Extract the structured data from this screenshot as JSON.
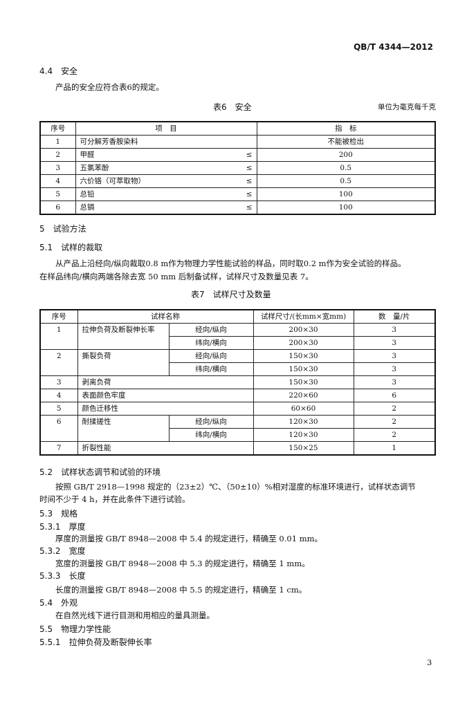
{
  "header": {
    "standard_no": "QB/T 4344—2012"
  },
  "s44": {
    "heading_no": "4.4",
    "heading": "安全",
    "para": "产品的安全应符合表6的规定。"
  },
  "table6": {
    "title": "表6　安全",
    "unit": "单位为毫克每千克",
    "headers": [
      "序号",
      "项　目",
      "指　标"
    ],
    "rows": [
      {
        "no": "1",
        "item": "可分解芳香胺染料",
        "op": "",
        "value": "不能被检出"
      },
      {
        "no": "2",
        "item": "甲醛",
        "op": "≤",
        "value": "200"
      },
      {
        "no": "3",
        "item": "五氯苯酚",
        "op": "≤",
        "value": "0.5"
      },
      {
        "no": "4",
        "item": "六价铬（可萃取物）",
        "op": "≤",
        "value": "0.5"
      },
      {
        "no": "5",
        "item": "总铅",
        "op": "≤",
        "value": "100"
      },
      {
        "no": "6",
        "item": "总镉",
        "op": "≤",
        "value": "100"
      }
    ]
  },
  "s5": {
    "heading_no": "5",
    "heading": "试验方法"
  },
  "s51": {
    "heading_no": "5.1",
    "heading": "试样的裁取",
    "line1": "从产品上沿经向/纵向裁取0.8 m作为物理力学性能试验的样品，同时取0.2 m作为安全试验的样品。",
    "line2": "在样品纬向/横向两端各除去宽 50 mm 后制备试样，试样尺寸及数量见表 7。"
  },
  "table7": {
    "title": "表7　试样尺寸及数量",
    "headers": [
      "序号",
      "试样名称",
      "试样尺寸/(长mm×宽mm)",
      "数　量/片"
    ],
    "rows": [
      {
        "no": "1",
        "name": "拉伸负荷及断裂伸长率",
        "subs": [
          {
            "dir": "经向/纵向",
            "size": "200×30",
            "qty": "3"
          },
          {
            "dir": "纬向/横向",
            "size": "200×30",
            "qty": "3"
          }
        ]
      },
      {
        "no": "2",
        "name": "撕裂负荷",
        "subs": [
          {
            "dir": "经向/纵向",
            "size": "150×30",
            "qty": "3"
          },
          {
            "dir": "纬向/横向",
            "size": "150×30",
            "qty": "3"
          }
        ]
      },
      {
        "no": "3",
        "name": "剥离负荷",
        "size": "150×30",
        "qty": "3"
      },
      {
        "no": "4",
        "name": "表面颜色牢度",
        "size": "220×60",
        "qty": "6"
      },
      {
        "no": "5",
        "name": "颜色迁移性",
        "size": "60×60",
        "qty": "2"
      },
      {
        "no": "6",
        "name": "耐揉搓性",
        "subs": [
          {
            "dir": "经向/纵向",
            "size": "120×30",
            "qty": "2"
          },
          {
            "dir": "纬向/横向",
            "size": "120×30",
            "qty": "2"
          }
        ]
      },
      {
        "no": "7",
        "name": "折裂性能",
        "size": "150×25",
        "qty": "1"
      }
    ]
  },
  "s52": {
    "heading_no": "5.2",
    "heading": "试样状态调节和试验的环境",
    "line1": "按照 GB/T 2918—1998 规定的（23±2）℃、（50±10）%相对湿度的标准环境进行，试样状态调节",
    "line2": "时间不少于 4 h，并在此条件下进行试验。"
  },
  "s53": {
    "heading_no": "5.3",
    "heading": "规格"
  },
  "s531": {
    "heading_no": "5.3.1",
    "heading": "厚度",
    "para": "厚度的测量按 GB/T 8948—2008 中 5.4 的规定进行，精确至 0.01 mm。"
  },
  "s532": {
    "heading_no": "5.3.2",
    "heading": "宽度",
    "para": "宽度的测量按 GB/T 8948—2008 中 5.3 的规定进行，精确至 1 mm。"
  },
  "s533": {
    "heading_no": "5.3.3",
    "heading": "长度",
    "para": "长度的测量按 GB/T 8948—2008 中 5.5 的规定进行，精确至 1 cm。"
  },
  "s54": {
    "heading_no": "5.4",
    "heading": "外观",
    "para": "在自然光线下进行目测和用相应的量具测量。"
  },
  "s55": {
    "heading_no": "5.5",
    "heading": "物理力学性能"
  },
  "s551": {
    "heading_no": "5.5.1",
    "heading": "拉伸负荷及断裂伸长率"
  },
  "footer": {
    "page_number": "3"
  }
}
